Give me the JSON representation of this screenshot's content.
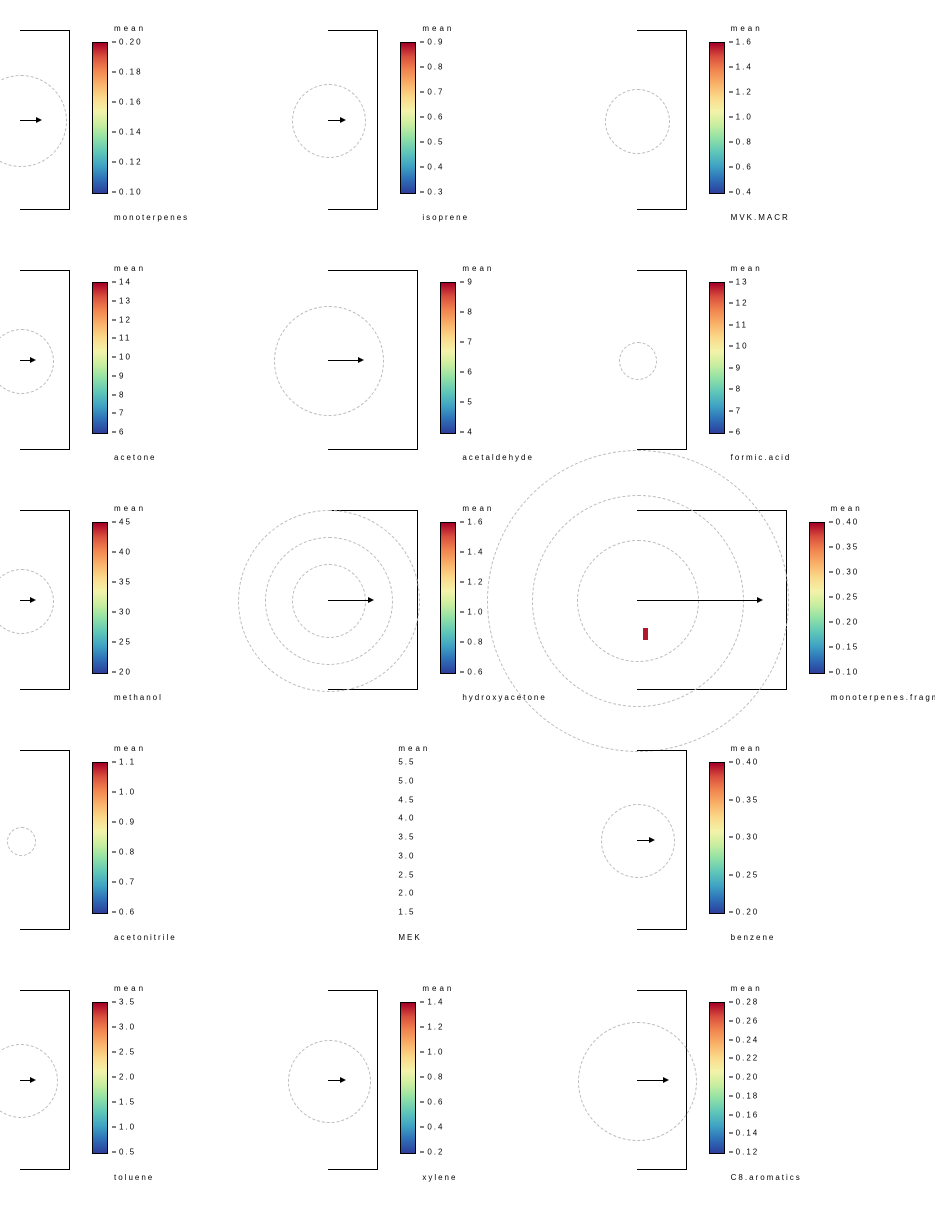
{
  "title_label": "mean",
  "colorbar_gradient": "linear-gradient(to top,#2c3e9b,#2e6fb7,#3fa3c4,#5fc6b8,#8fe0a6,#c9ee9f,#f3f3a9,#fbd98a,#f9b26a,#f1854f,#d94e3d,#a50026)",
  "panels": [
    {
      "name": "monoterpenes",
      "sub": "monoterpenes",
      "ticks": [
        "0.20",
        "0.18",
        "0.16",
        "0.14",
        "0.12",
        "0.10"
      ],
      "arc_scale": 0.5,
      "arrow": true,
      "arrow_len": 16,
      "wide": false,
      "has_bar": true
    },
    {
      "name": "isoprene",
      "sub": "isoprene",
      "ticks": [
        "0.9",
        "0.8",
        "0.7",
        "0.6",
        "0.5",
        "0.4",
        "0.3"
      ],
      "arc_scale": 0.4,
      "arrow": true,
      "arrow_len": 12,
      "wide": false,
      "has_bar": true
    },
    {
      "name": "mvkmacr",
      "sub": "MVK.MACR",
      "ticks": [
        "1.6",
        "1.4",
        "1.2",
        "1.0",
        "0.8",
        "0.6",
        "0.4"
      ],
      "arc_scale": 0.35,
      "arrow": false,
      "wide": false,
      "has_bar": true
    },
    {
      "name": "acetone",
      "sub": "acetone",
      "ticks": [
        "14",
        "13",
        "12",
        "11",
        "10",
        "9",
        "8",
        "7",
        "6"
      ],
      "arc_scale": 0.35,
      "arrow": true,
      "arrow_len": 10,
      "wide": false,
      "has_bar": true
    },
    {
      "name": "acetaldehyde",
      "sub": "acetaldehyde",
      "ticks": [
        "9",
        "8",
        "7",
        "6",
        "5",
        "4"
      ],
      "arc_scale": 0.6,
      "arrow": true,
      "arrow_len": 30,
      "wide": true,
      "has_bar": true
    },
    {
      "name": "formicacid",
      "sub": "formic.acid",
      "ticks": [
        "13",
        "12",
        "11",
        "10",
        "9",
        "8",
        "7",
        "6"
      ],
      "arc_scale": 0.2,
      "arrow": false,
      "wide": false,
      "has_bar": true
    },
    {
      "name": "methanol",
      "sub": "methanol",
      "ticks": [
        "45",
        "40",
        "35",
        "30",
        "25",
        "20"
      ],
      "arc_scale": 0.35,
      "arrow": true,
      "arrow_len": 10,
      "wide": false,
      "has_bar": true
    },
    {
      "name": "hydroxyacetone",
      "sub": "hydroxyacetone",
      "ticks": [
        "1.6",
        "1.4",
        "1.2",
        "1.0",
        "0.8",
        "0.6"
      ],
      "arc_scale": 1.0,
      "arrow": true,
      "arrow_len": 40,
      "wide": true,
      "multi_arc": true,
      "has_bar": true
    },
    {
      "name": "monoterpenesfragments",
      "sub": "monoterpenes.fragments",
      "ticks": [
        "0.40",
        "0.35",
        "0.30",
        "0.25",
        "0.20",
        "0.15",
        "0.10"
      ],
      "arc_scale": 1.0,
      "arrow": true,
      "arrow_len": 120,
      "wide": true,
      "multi_arc": true,
      "xwide": true,
      "has_bar": true,
      "marker": true
    },
    {
      "name": "acetonitrile",
      "sub": "acetonitrile",
      "ticks": [
        "1.1",
        "1.0",
        "0.9",
        "0.8",
        "0.7",
        "0.6"
      ],
      "arc_scale": 0.15,
      "arrow": false,
      "wide": false,
      "has_bar": true
    },
    {
      "name": "mek",
      "sub": "MEK",
      "ticks": [
        "5.5",
        "5.0",
        "4.5",
        "4.0",
        "3.5",
        "3.0",
        "2.5",
        "2.0",
        "1.5"
      ],
      "arc_scale": 0,
      "arrow": false,
      "wide": false,
      "has_bar": false
    },
    {
      "name": "benzene",
      "sub": "benzene",
      "ticks": [
        "0.40",
        "0.35",
        "0.30",
        "0.25",
        "0.20"
      ],
      "arc_scale": 0.4,
      "arrow": true,
      "arrow_len": 12,
      "wide": false,
      "has_bar": true
    },
    {
      "name": "toluene",
      "sub": "toluene",
      "ticks": [
        "3.5",
        "3.0",
        "2.5",
        "2.0",
        "1.5",
        "1.0",
        "0.5"
      ],
      "arc_scale": 0.4,
      "arrow": true,
      "arrow_len": 10,
      "wide": false,
      "has_bar": true
    },
    {
      "name": "xylene",
      "sub": "xylene",
      "ticks": [
        "1.4",
        "1.2",
        "1.0",
        "0.8",
        "0.6",
        "0.4",
        "0.2"
      ],
      "arc_scale": 0.45,
      "arrow": true,
      "arrow_len": 12,
      "wide": false,
      "has_bar": true
    },
    {
      "name": "c8aromatics",
      "sub": "C8.aromatics",
      "ticks": [
        "0.28",
        "0.26",
        "0.24",
        "0.22",
        "0.20",
        "0.18",
        "0.16",
        "0.14",
        "0.12"
      ],
      "arc_scale": 0.65,
      "arrow": true,
      "arrow_len": 26,
      "wide": false,
      "has_bar": true
    }
  ]
}
